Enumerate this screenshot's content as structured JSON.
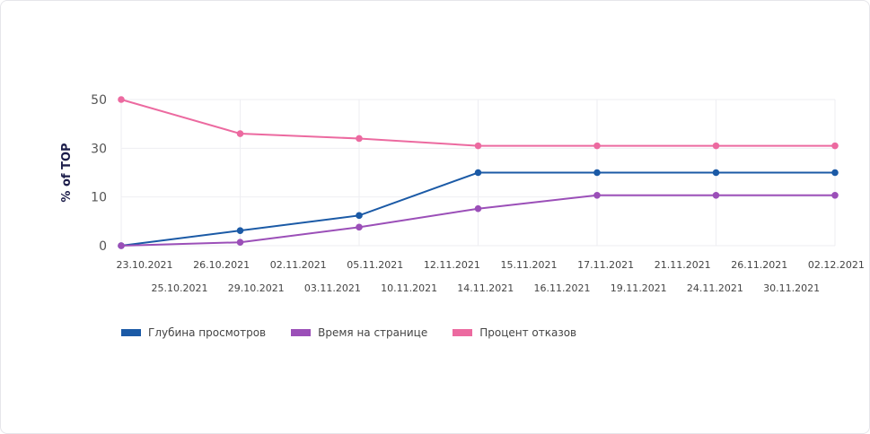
{
  "chart_data": {
    "type": "line",
    "title": "",
    "ylabel": "% of TOP",
    "xlabel": "",
    "y_ticks": [
      0,
      10,
      30,
      50
    ],
    "ylim": [
      0,
      50
    ],
    "grid": true,
    "x_points": 7,
    "x_labels_row1": [
      "23.10.2021",
      "26.10.2021",
      "02.11.2021",
      "05.11.2021",
      "12.11.2021",
      "15.11.2021",
      "17.11.2021",
      "21.11.2021",
      "26.11.2021",
      "02.12.2021"
    ],
    "x_labels_row2": [
      "25.10.2021",
      "29.10.2021",
      "03.11.2021",
      "10.11.2021",
      "14.11.2021",
      "16.11.2021",
      "19.11.2021",
      "24.11.2021",
      "30.11.2021"
    ],
    "legend_position": "bottom-left",
    "series": [
      {
        "name": "Глубина просмотров",
        "color": "#1b5aa6",
        "values": [
          0,
          3.1,
          6.2,
          20,
          20,
          20,
          20
        ]
      },
      {
        "name": "Время на странице",
        "color": "#9b4fb8",
        "values": [
          0,
          0.7,
          3.8,
          7.6,
          10.7,
          10.7,
          10.7
        ]
      },
      {
        "name": "Процент отказов",
        "color": "#ec6aa0",
        "values": [
          50,
          36,
          34,
          31,
          31,
          31,
          31
        ]
      }
    ]
  }
}
